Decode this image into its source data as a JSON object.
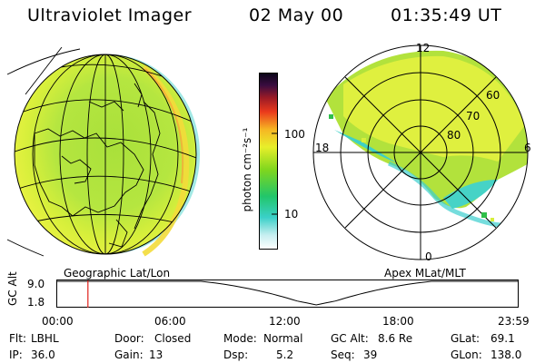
{
  "header": {
    "instrument": "Ultraviolet Imager",
    "date": "02 May 00",
    "time": "01:35:49 UT"
  },
  "left_panel": {
    "label": "Geographic Lat/Lon"
  },
  "right_panel": {
    "label": "Apex MLat/MLT",
    "mlt_labels": {
      "top": "12",
      "left": "18",
      "right": "6",
      "bottom": "0"
    },
    "lat_labels": [
      "60",
      "70",
      "80"
    ]
  },
  "colorbar": {
    "unit_label": "photon cm⁻²s⁻¹",
    "ticks": [
      "100",
      "10"
    ]
  },
  "timeline": {
    "axis_label": "GC Alt",
    "y_ticks": [
      "9.0",
      "1.8"
    ],
    "x_ticks": [
      "00:00",
      "06:00",
      "12:00",
      "18:00",
      "23:59"
    ],
    "current_time_hours": 1.6
  },
  "footer": {
    "row1": [
      {
        "key": "Flt:",
        "value": "LBHL"
      },
      {
        "key": "Door:",
        "value": "Closed"
      },
      {
        "key": "Mode:",
        "value": "Normal"
      },
      {
        "key": "GC Alt:",
        "value": "8.6 Re"
      },
      {
        "key": "GLat:",
        "value": "69.1"
      }
    ],
    "row2": [
      {
        "key": "IP:",
        "value": "36.0"
      },
      {
        "key": "Gain:",
        "value": "13"
      },
      {
        "key": "Dsp:",
        "value": "5.2"
      },
      {
        "key": "Seq:",
        "value": "39"
      },
      {
        "key": "GLon:",
        "value": "138.0"
      }
    ]
  },
  "colors": {
    "green": "#7ed321",
    "yellow": "#f2f23a",
    "cyan": "#34d3c9",
    "marker": "#e0201a"
  }
}
